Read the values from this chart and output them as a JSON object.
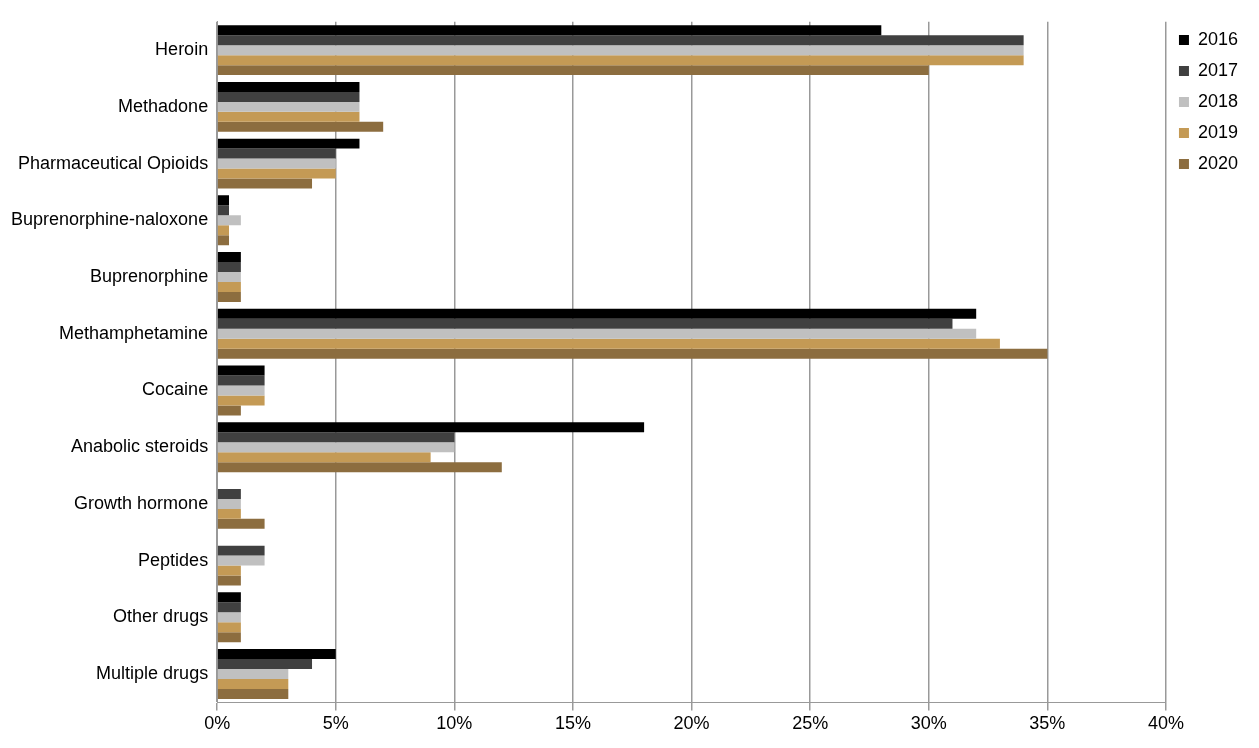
{
  "chart_data": {
    "type": "bar",
    "orientation": "horizontal",
    "categories": [
      "Heroin",
      "Methadone",
      "Pharmaceutical Opioids",
      "Buprenorphine-naloxone",
      "Buprenorphine",
      "Methamphetamine",
      "Cocaine",
      "Anabolic steroids",
      "Growth hormone",
      "Peptides",
      "Other drugs",
      "Multiple drugs"
    ],
    "series": [
      {
        "name": "2016",
        "color": "#000000",
        "values": [
          28,
          6,
          6,
          0.5,
          1,
          32,
          2,
          18,
          0,
          0,
          1,
          5
        ]
      },
      {
        "name": "2017",
        "color": "#404040",
        "values": [
          34,
          6,
          5,
          0.5,
          1,
          31,
          2,
          10,
          1,
          2,
          1,
          4
        ]
      },
      {
        "name": "2018",
        "color": "#c0c0c0",
        "values": [
          34,
          6,
          5,
          1,
          1,
          32,
          2,
          10,
          1,
          2,
          1,
          3
        ]
      },
      {
        "name": "2019",
        "color": "#c49a55",
        "values": [
          34,
          6,
          5,
          0.5,
          1,
          33,
          2,
          9,
          1,
          1,
          1,
          3
        ]
      },
      {
        "name": "2020",
        "color": "#8c6d3f",
        "values": [
          30,
          7,
          4,
          0.5,
          1,
          35,
          1,
          12,
          2,
          1,
          1,
          3
        ]
      }
    ],
    "xlim": [
      0,
      40
    ],
    "xticks": [
      {
        "value": 0,
        "label": "0%"
      },
      {
        "value": 5,
        "label": "5%"
      },
      {
        "value": 10,
        "label": "10%"
      },
      {
        "value": 15,
        "label": "15%"
      },
      {
        "value": 20,
        "label": "20%"
      },
      {
        "value": 25,
        "label": "25%"
      },
      {
        "value": 30,
        "label": "30%"
      },
      {
        "value": 35,
        "label": "35%"
      },
      {
        "value": 40,
        "label": "40%"
      }
    ],
    "grid": "x",
    "legend": "right"
  }
}
